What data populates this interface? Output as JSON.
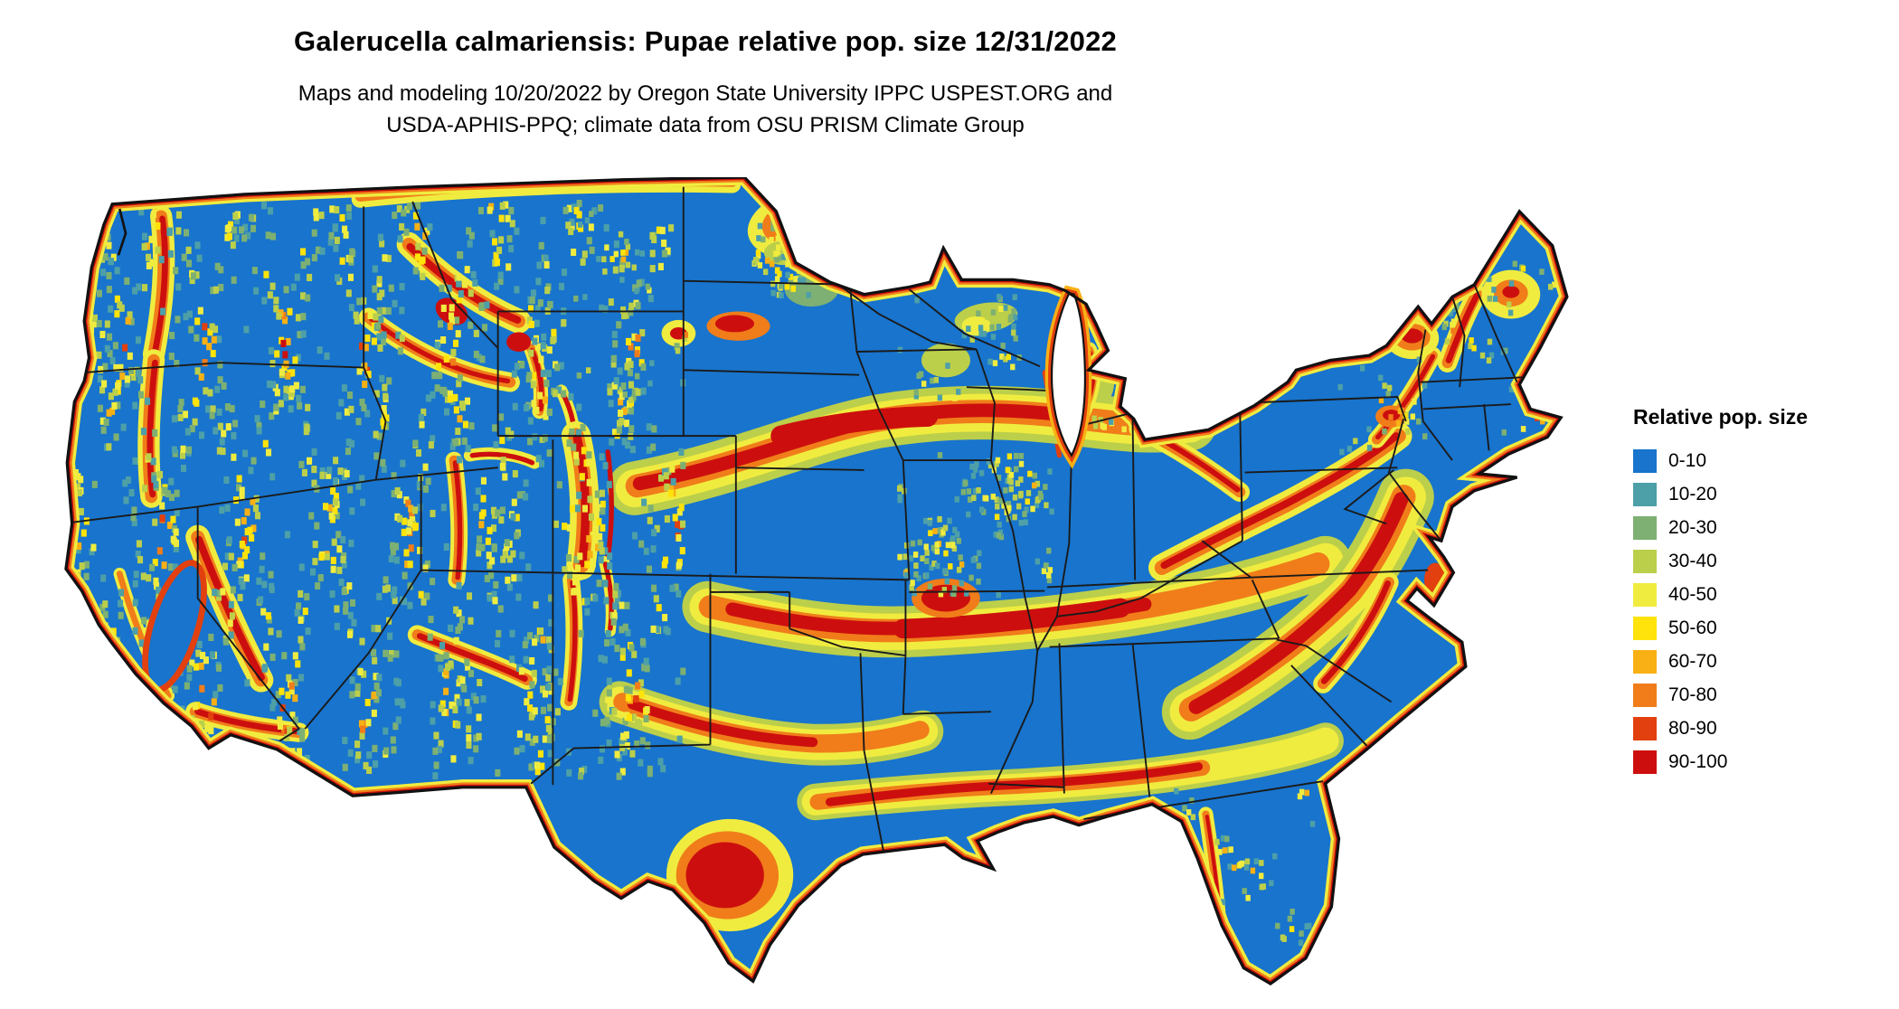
{
  "header": {
    "title": "Galerucella calmariensis: Pupae relative pop. size 12/31/2022",
    "subtitle_line1": "Maps and modeling 10/20/2022 by Oregon State University IPPC USPEST.ORG and",
    "subtitle_line2": "USDA-APHIS-PPQ; climate data from OSU PRISM Climate Group"
  },
  "legend": {
    "title": "Relative pop. size",
    "items": [
      {
        "label": "0-10",
        "color": "#1874CD"
      },
      {
        "label": "10-20",
        "color": "#4D9FA8"
      },
      {
        "label": "20-30",
        "color": "#7DB072"
      },
      {
        "label": "30-40",
        "color": "#BCCF4A"
      },
      {
        "label": "40-50",
        "color": "#F0EC3F"
      },
      {
        "label": "50-60",
        "color": "#FFE30A"
      },
      {
        "label": "60-70",
        "color": "#F9B015"
      },
      {
        "label": "70-80",
        "color": "#F07D1A"
      },
      {
        "label": "80-90",
        "color": "#E2400E"
      },
      {
        "label": "90-100",
        "color": "#CC0F0E"
      }
    ]
  }
}
